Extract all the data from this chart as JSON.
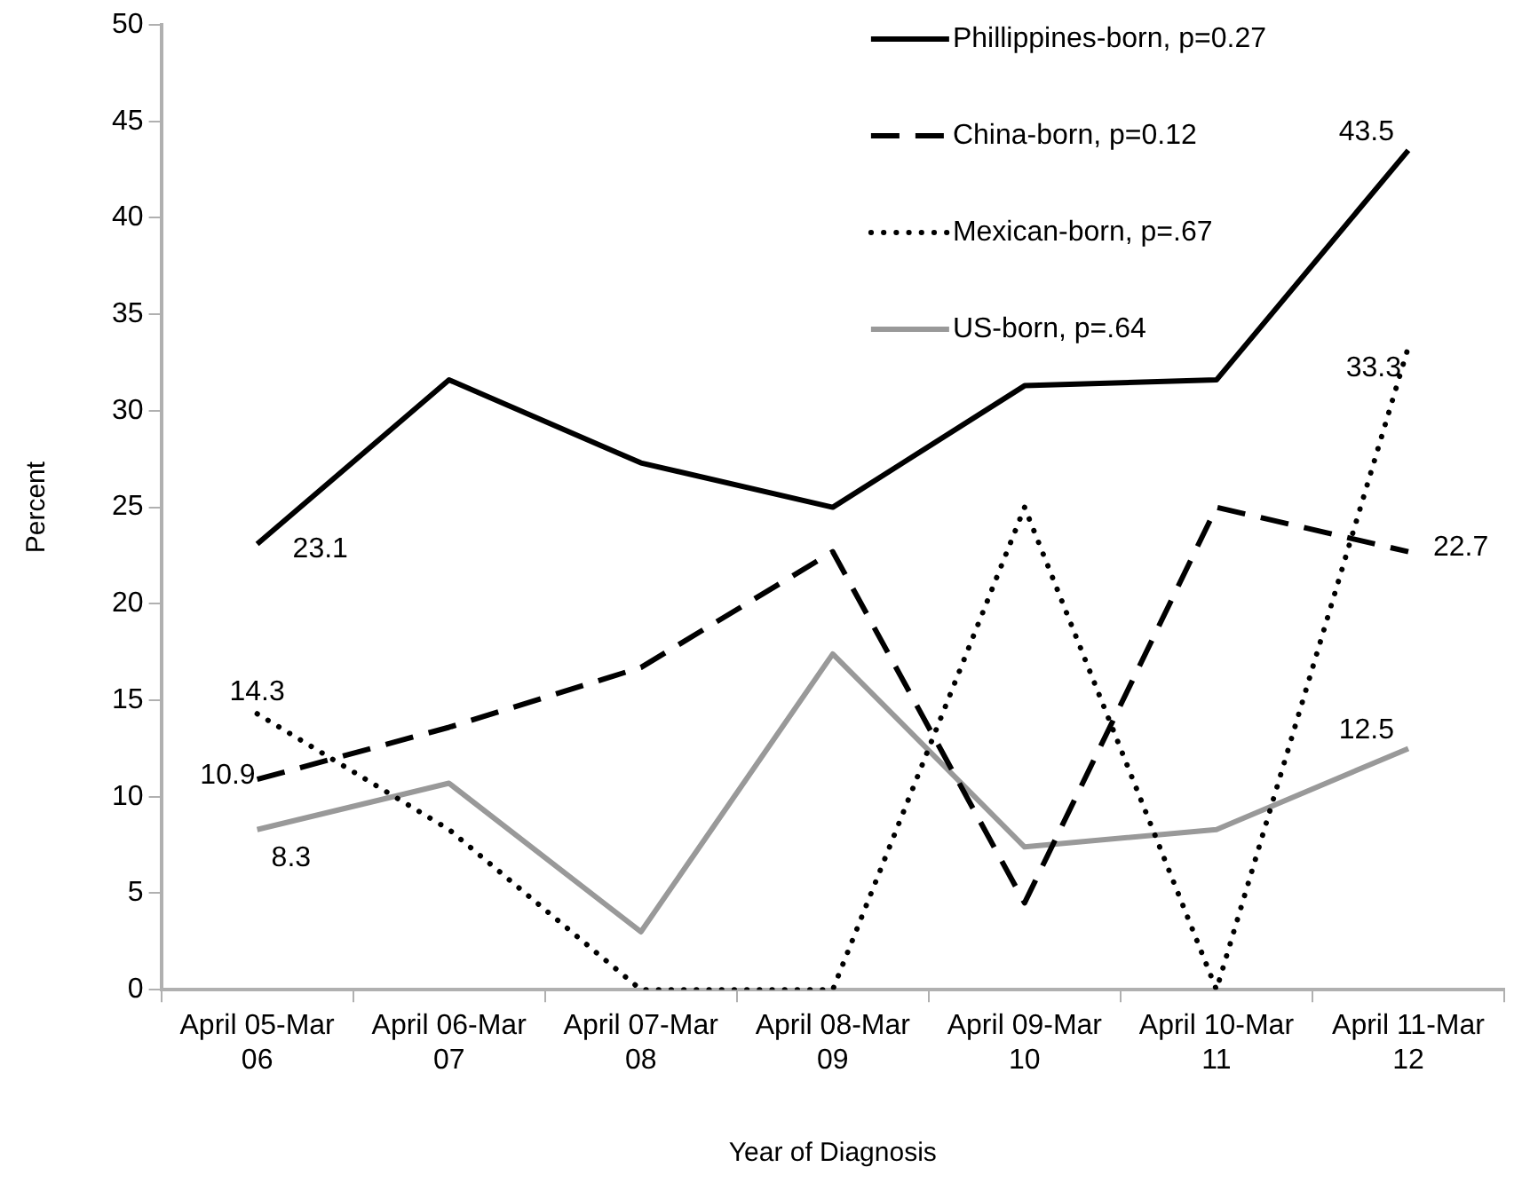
{
  "chart_data": {
    "type": "line",
    "xlabel": "Year of Diagnosis",
    "ylabel": "Percent",
    "categories": [
      "April 05-Mar 06",
      "April 06-Mar 07",
      "April 07-Mar 08",
      "April 08-Mar 09",
      "April 09-Mar 10",
      "April 10-Mar 11",
      "April 11-Mar 12"
    ],
    "series": [
      {
        "name": "Phillippines-born, p=0.27",
        "color": "#000000",
        "line_style": "solid",
        "values": [
          23.1,
          31.6,
          27.3,
          25.0,
          31.3,
          31.6,
          43.5
        ],
        "value_labels": [
          "23.1",
          null,
          null,
          null,
          null,
          null,
          "43.5"
        ]
      },
      {
        "name": "China-born, p=0.12",
        "color": "#000000",
        "line_style": "dashed",
        "values": [
          10.9,
          13.6,
          16.7,
          22.7,
          4.5,
          25.0,
          22.7
        ],
        "value_labels": [
          "10.9",
          null,
          null,
          null,
          null,
          null,
          "22.7"
        ]
      },
      {
        "name": "Mexican-born, p=.67",
        "color": "#000000",
        "line_style": "dotted",
        "values": [
          14.3,
          8.3,
          0,
          0,
          25.0,
          0,
          33.3
        ],
        "value_labels": [
          "14.3",
          null,
          null,
          null,
          null,
          null,
          "33.3"
        ]
      },
      {
        "name": "US-born, p=.64",
        "color": "#999999",
        "line_style": "solid",
        "values": [
          8.3,
          10.7,
          3.0,
          17.4,
          7.4,
          8.3,
          12.5
        ],
        "value_labels": [
          "8.3",
          null,
          null,
          null,
          null,
          null,
          "12.5"
        ]
      }
    ],
    "ylim": [
      0,
      50
    ],
    "yticks": [
      0,
      5,
      10,
      15,
      20,
      25,
      30,
      35,
      40,
      45,
      50
    ],
    "grid": false,
    "legend": "top right",
    "marker": "none"
  }
}
